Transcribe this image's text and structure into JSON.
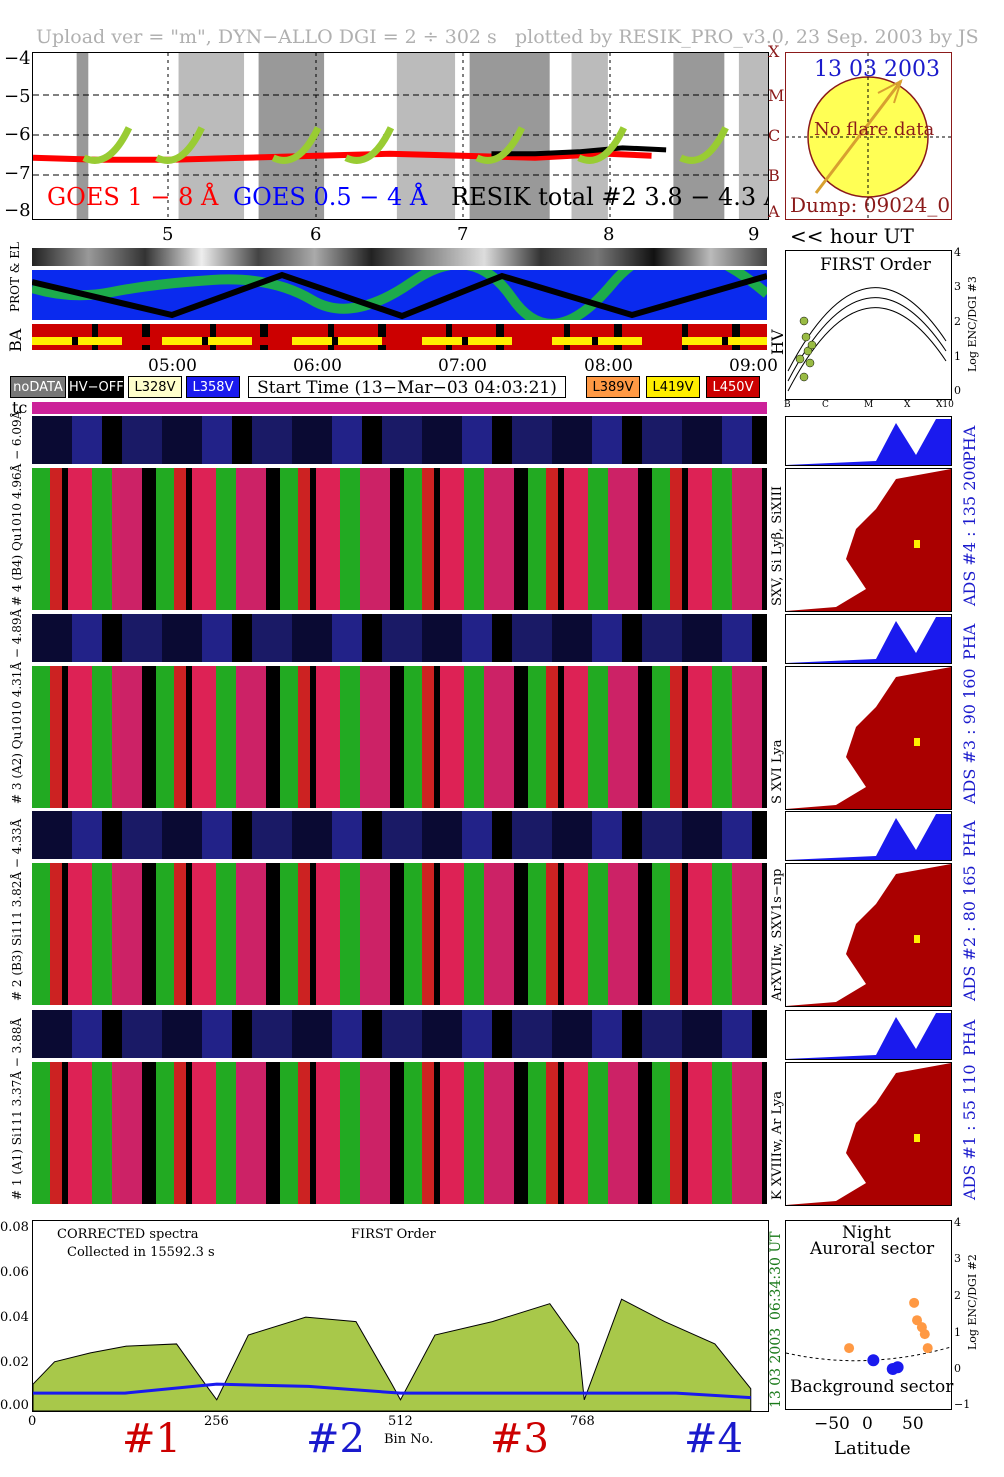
{
  "header": {
    "left": "Upload ver = \"m\", DYN−ALLO DGI =   2 ÷ 302 s",
    "right": "plotted by RESIK_PRO_v3.0, 23 Sep. 2003 by JS"
  },
  "goes_panel": {
    "yticks": [
      "−4",
      "−5",
      "−6",
      "−7",
      "−8"
    ],
    "class_letters": [
      "X",
      "M",
      "C",
      "B",
      "A"
    ],
    "label_goes18": "GOES 1 − 8 Å",
    "label_goes054": "GOES 0.5 − 4 Å",
    "label_resik": "RESIK total #2  3.8 − 4.3 Å",
    "hour_ticks": [
      "5",
      "6",
      "7",
      "8",
      "9"
    ],
    "hour_label": "<< hour UT",
    "colors": {
      "goes18": "#ff0000",
      "goes054": "#0000ff",
      "resik": "#000000",
      "model": "#99cc33",
      "model2": "#ff9966"
    }
  },
  "sun_panel": {
    "date": "13 03 2003",
    "text": "No flare data",
    "dump": "Dump: 09024_0"
  },
  "orbit_panel": {
    "label_prot": "PROT & EL",
    "label_ba": "BA",
    "label_hv": "HV",
    "time_ticks": [
      "05:00",
      "06:00",
      "07:00",
      "08:00",
      "09:00"
    ]
  },
  "legend": {
    "nodata": "noDATA",
    "hvoff": "HV−OFF",
    "l328": "L328V",
    "l358": "L358V",
    "start_time": "Start Time (13−Mar−03 04:03:21)",
    "l389": "L389V",
    "l419": "L419V",
    "l450": "L450V",
    "tc": "tc"
  },
  "first_order": {
    "title": "FIRST Order",
    "ylabel": "Log ENC/DGI #3",
    "yticks": [
      "4",
      "3",
      "2",
      "1",
      "0"
    ],
    "xticks": [
      "B",
      "C",
      "M",
      "X",
      "X10"
    ]
  },
  "channels": [
    {
      "pha_label": "# 4 (B4) Qu1010 4.96Å − 6.09Å",
      "lines": "SXV, Si Lyβ, SiXIII",
      "ads": "ADS #4 :   135 200"
    },
    {
      "pha_label": "# 3 (A2) Qu1010 4.31Å − 4.89Å",
      "lines": "S XVI Lya",
      "ads": "ADS #3 :    90 160"
    },
    {
      "pha_label": "# 2 (B3) Si111 3.82Å − 4.33Å",
      "lines": "ArXVIIw, SXV1s−np",
      "ads": "ADS #2 :    80 165"
    },
    {
      "pha_label": "# 1 (A1) Si111 3.37Å − 3.88Å",
      "lines": "K XVIIIw, Ar Lya",
      "ads": "ADS #1 :    55 110"
    }
  ],
  "pha_tag": "PHA",
  "spectrum_panel": {
    "title1": "CORRECTED spectra",
    "title2": "Collected in 15592.3 s",
    "title3": "FIRST Order",
    "yticks": [
      "0.08",
      "0.06",
      "0.04",
      "0.02",
      "0.00"
    ],
    "xticks": [
      "0",
      "256",
      "512",
      "768"
    ],
    "xlabel": "Bin No.",
    "time_label": "06:34:30 UT",
    "date_label": "13 03 2003",
    "channel_tags": [
      "#1",
      "#2",
      "#3",
      "#4"
    ],
    "tag_colors": [
      "#cc0000",
      "#1a1acc",
      "#cc0000",
      "#1a1acc"
    ]
  },
  "latitude_panel": {
    "title1": "Night",
    "title2": "Auroral sector",
    "bottom": "Background sector",
    "xlabel": "Latitude",
    "xticks": [
      "−50",
      "0",
      "50"
    ],
    "ylabel": "Log ENC/DGI #2",
    "yticks": [
      "4",
      "3",
      "2",
      "1",
      "0",
      "−1"
    ]
  },
  "chart_data": [
    {
      "type": "line",
      "title": "",
      "xlabel": "hour UT",
      "ylabel": "",
      "xlim": [
        4.05,
        9.1
      ],
      "ylim": [
        -8.1,
        -3.9
      ],
      "series": [
        {
          "name": "GOES 1 − 8 Å",
          "x": [
            4.05,
            4.5,
            5.0,
            5.5,
            6.0,
            6.5,
            7.0,
            7.5,
            8.0,
            8.3
          ],
          "values": [
            -6.55,
            -6.6,
            -6.6,
            -6.55,
            -6.5,
            -6.45,
            -6.5,
            -6.55,
            -6.45,
            -6.5
          ]
        },
        {
          "name": "RESIK total #2  3.8 − 4.3 Å",
          "x": [
            7.2,
            7.5,
            7.8,
            8.1,
            8.4
          ],
          "values": [
            -6.45,
            -6.45,
            -6.4,
            -6.3,
            -6.35
          ]
        }
      ]
    },
    {
      "type": "line",
      "title": "",
      "xlabel": "Bin No.",
      "ylabel": "",
      "xlim": [
        0,
        1024
      ],
      "ylim": [
        0,
        0.085
      ],
      "series": [
        {
          "name": "CORRECTED spectra",
          "x": [
            0,
            30,
            80,
            130,
            200,
            240,
            256,
            300,
            380,
            450,
            500,
            512,
            560,
            640,
            720,
            760,
            768,
            820,
            880,
            950,
            1000
          ],
          "values": [
            0.012,
            0.022,
            0.026,
            0.029,
            0.03,
            0.012,
            0.005,
            0.034,
            0.042,
            0.04,
            0.012,
            0.005,
            0.034,
            0.04,
            0.048,
            0.03,
            0.005,
            0.05,
            0.04,
            0.03,
            0.01
          ]
        },
        {
          "name": "FIRST Order",
          "x": [
            0,
            128,
            256,
            384,
            512,
            640,
            768,
            896,
            1000
          ],
          "values": [
            0.008,
            0.008,
            0.012,
            0.011,
            0.008,
            0.008,
            0.008,
            0.008,
            0.006
          ]
        }
      ]
    },
    {
      "type": "scatter",
      "title": "",
      "xlabel": "Latitude",
      "ylabel": "Log ENC/DGI #2",
      "xlim": [
        -80,
        90
      ],
      "ylim": [
        -1.2,
        4.2
      ],
      "series": [
        {
          "name": "Auroral sector",
          "x": [
            -15,
            52,
            55,
            60,
            63,
            66
          ],
          "values": [
            0.55,
            1.85,
            1.35,
            1.15,
            0.95,
            0.55
          ]
        },
        {
          "name": "Background sector",
          "x": [
            10,
            30,
            35
          ],
          "values": [
            0.2,
            -0.05,
            0.0
          ]
        }
      ]
    }
  ]
}
